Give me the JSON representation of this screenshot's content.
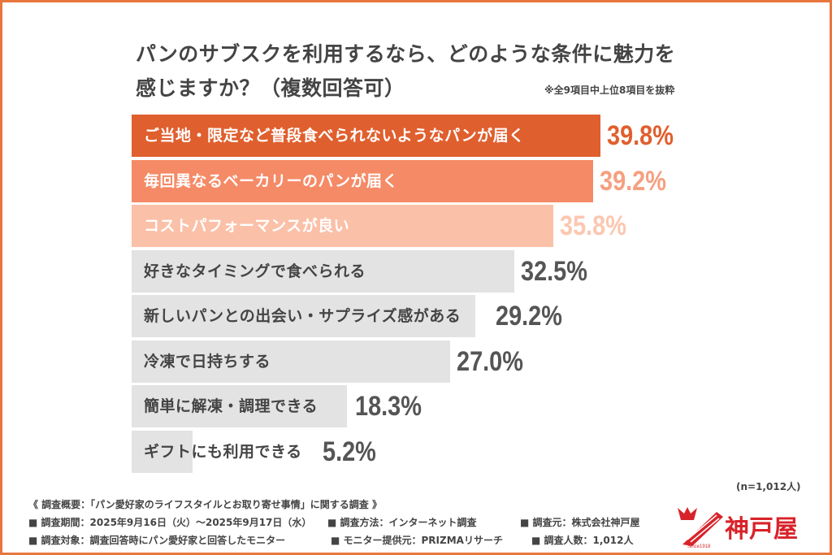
{
  "title_line1": "パンのサブスクを利用するなら、どのような条件に魅力を",
  "title_line2": "感じますか？（複数回答可）",
  "note": "※全9項目中上位8項目を抜粋",
  "sample_size": "(n=1,012人)",
  "colors": {
    "bar1": "#e05f2e",
    "bar2": "#f58a66",
    "bar3": "#fbc0a8",
    "bar_gray": "#e3e3e3",
    "val1": "#e05f2e",
    "val2": "#f5a080",
    "val3": "#fcc7b0",
    "val_gray": "#555555",
    "border": "#e8773f"
  },
  "chart_data": {
    "type": "bar",
    "orientation": "horizontal",
    "unit": "%",
    "categories": [
      "ご当地・限定など普段食べられないようなパンが届く",
      "毎回異なるベーカリーのパンが届く",
      "コストパフォーマンスが良い",
      "好きなタイミングで食べられる",
      "新しいパンとの出会い・サプライズ感がある",
      "冷凍で日持ちする",
      "簡単に解凍・調理できる",
      "ギフトにも利用できる"
    ],
    "values": [
      39.8,
      39.2,
      35.8,
      32.5,
      29.2,
      27.0,
      18.3,
      5.2
    ],
    "labels": [
      "39.8%",
      "39.2%",
      "35.8%",
      "32.5%",
      "29.2%",
      "27.0%",
      "18.3%",
      "5.2%"
    ]
  },
  "footer": {
    "overview": "《 調査概要：「パン愛好家のライフスタイルとお取り寄せ事情」に関する調査 》",
    "period": "■ 調査期間：2025年9月16日（火）～2025年9月17日（水）",
    "method": "■ 調査方法：インターネット調査",
    "source": "■ 調査元：株式会社神戸屋",
    "target": "■ 調査対象：調査回答時にパン愛好家と回答したモニター",
    "provider": "■ モニター提供元：PRIZMAリサーチ",
    "count": "■ 調査人数：1,012人"
  },
  "logo": {
    "name": "神戸屋",
    "since": "Since1918"
  }
}
